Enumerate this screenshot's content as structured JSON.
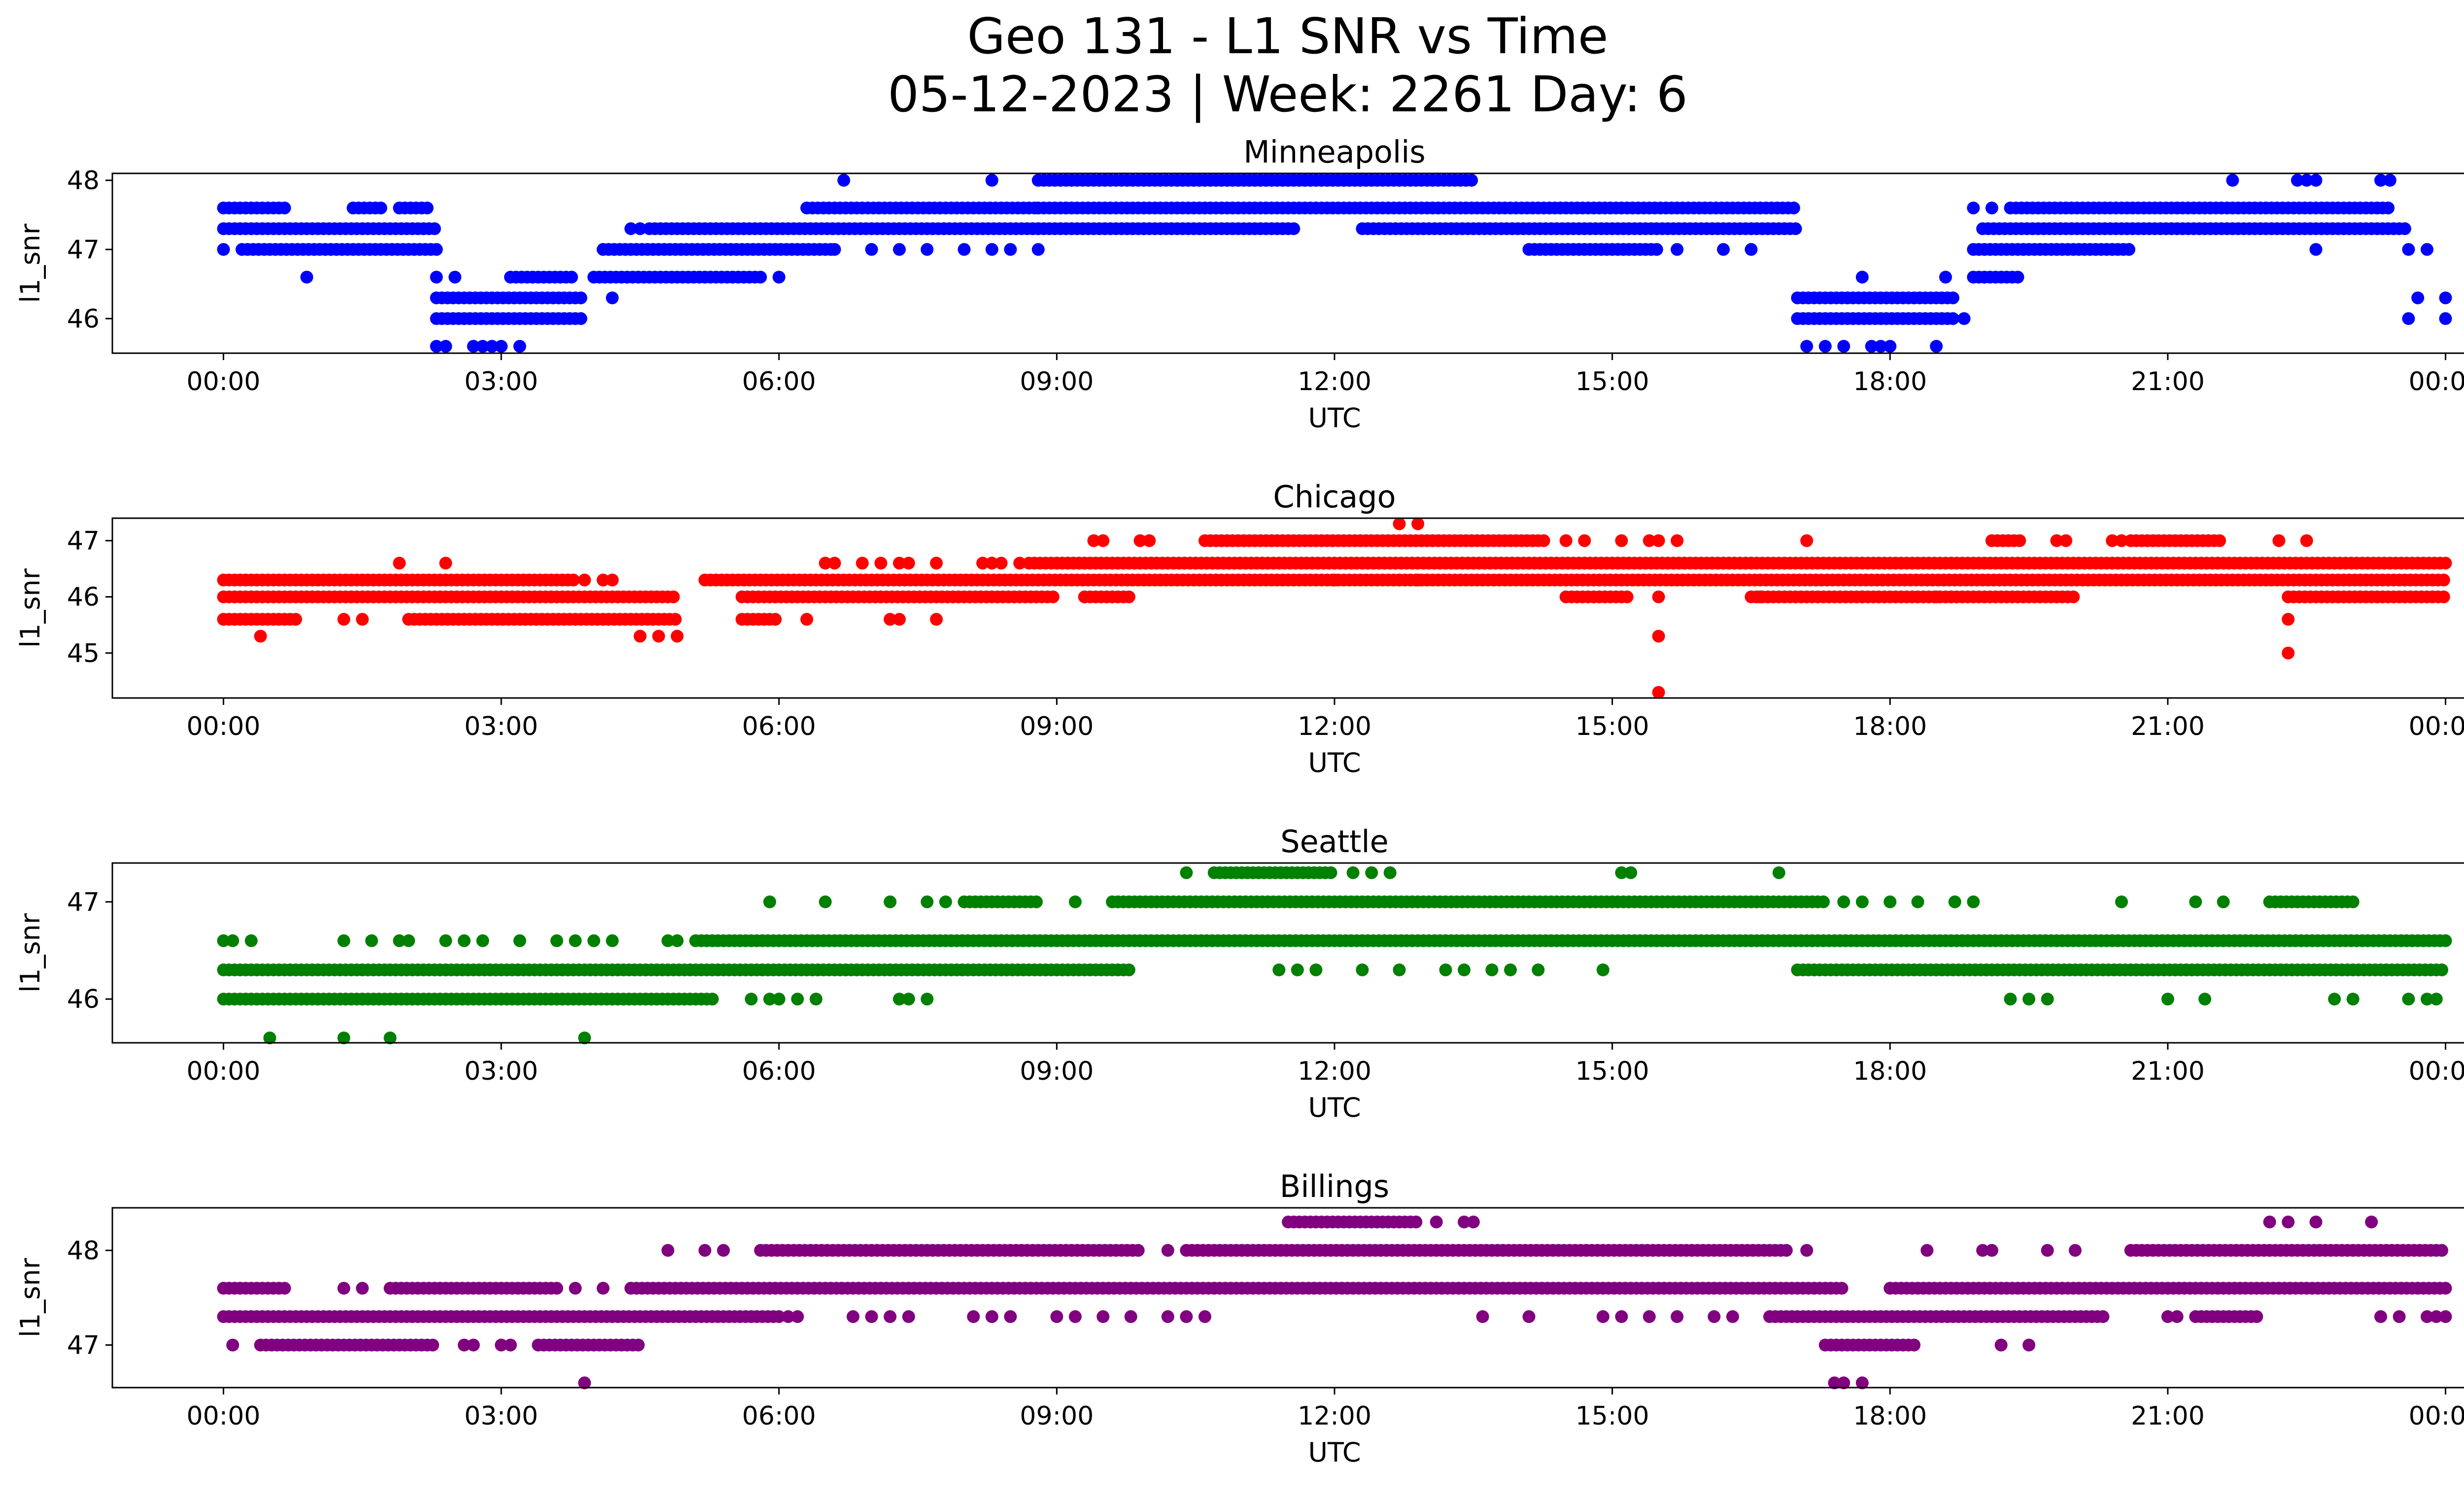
{
  "chart_data": {
    "type": "scatter",
    "title": "Geo 131 - L1 SNR vs Time",
    "subtitle": "05-12-2023 | Week: 2261 Day: 6",
    "xlabel": "UTC",
    "ylabel": "l1_snr",
    "x_ticks": [
      "00:00",
      "03:00",
      "06:00",
      "09:00",
      "12:00",
      "15:00",
      "18:00",
      "21:00",
      "00:00"
    ],
    "xlim_hours": [
      -1.2,
      25.2
    ],
    "grid": false,
    "panels": [
      {
        "title": "Minneapolis",
        "color": "#0000ff",
        "ylim": [
          45.5,
          48.1
        ],
        "yticks": [
          46,
          47,
          48
        ],
        "series": [
          {
            "y": 47.6,
            "ranges": [
              [
                0.0,
                0.7
              ],
              [
                1.4,
                1.7
              ],
              [
                1.9,
                2.2
              ],
              [
                6.3,
                8.8
              ],
              [
                8.8,
                17.0
              ],
              [
                19.3,
                23.4
              ]
            ],
            "points": [
              18.9,
              19.1
            ]
          },
          {
            "y": 47.3,
            "ranges": [
              [
                0.0,
                2.3
              ],
              [
                4.6,
                8.8
              ],
              [
                8.8,
                11.6
              ],
              [
                12.3,
                17.0
              ],
              [
                19.0,
                23.6
              ]
            ],
            "points": [
              4.4,
              4.5
            ]
          },
          {
            "y": 47.0,
            "ranges": [
              [
                0.2,
                2.3
              ],
              [
                4.1,
                6.6
              ],
              [
                14.1,
                15.5
              ],
              [
                18.9,
                20.6
              ]
            ],
            "points": [
              0.0,
              6.6,
              7.0,
              7.3,
              7.6,
              8.0,
              8.3,
              8.5,
              8.8,
              15.7,
              16.2,
              16.5,
              22.6,
              23.6,
              23.8
            ]
          },
          {
            "y": 46.6,
            "ranges": [
              [
                3.1,
                3.8
              ],
              [
                4.0,
                5.8
              ],
              [
                18.9,
                19.4
              ]
            ],
            "points": [
              0.9,
              2.3,
              2.5,
              6.0,
              17.7,
              18.6
            ]
          },
          {
            "y": 46.3,
            "ranges": [
              [
                2.3,
                3.9
              ],
              [
                17.0,
                18.7
              ]
            ],
            "points": [
              4.2,
              23.7,
              24.0
            ]
          },
          {
            "y": 46.0,
            "ranges": [
              [
                2.3,
                3.9
              ],
              [
                17.0,
                18.7
              ]
            ],
            "points": [
              18.8,
              23.6,
              24.0
            ]
          },
          {
            "y": 45.6,
            "ranges": [],
            "points": [
              2.3,
              2.4,
              2.7,
              2.8,
              2.9,
              3.0,
              3.2,
              17.1,
              17.3,
              17.5,
              17.8,
              17.9,
              18.0,
              18.5
            ]
          },
          {
            "y": 48.0,
            "ranges": [
              [
                8.8,
                13.5
              ],
              [
                10.3,
                12.4
              ]
            ],
            "points": [
              6.7,
              8.3,
              21.7,
              22.4,
              22.5,
              22.6,
              23.3,
              23.4
            ]
          }
        ]
      },
      {
        "title": "Chicago",
        "color": "#ff0000",
        "ylim": [
          44.2,
          47.4
        ],
        "yticks": [
          45,
          46,
          47
        ],
        "series": [
          {
            "y": 47.0,
            "ranges": [
              [
                10.6,
                14.3
              ],
              [
                19.1,
                19.4
              ],
              [
                20.6,
                21.6
              ]
            ],
            "points": [
              9.4,
              9.5,
              9.9,
              10.0,
              14.5,
              14.7,
              15.1,
              15.4,
              15.5,
              15.7,
              17.1,
              19.8,
              19.9,
              20.4,
              20.5,
              22.2,
              22.5
            ]
          },
          {
            "y": 46.6,
            "ranges": [
              [
                8.7,
                24.0
              ],
              [
                9.0,
                16.5
              ]
            ],
            "points": [
              1.9,
              2.4,
              6.5,
              6.6,
              6.9,
              7.1,
              7.3,
              7.4,
              7.7,
              8.2,
              8.3,
              8.4,
              8.6
            ]
          },
          {
            "y": 46.3,
            "ranges": [
              [
                0.0,
                3.8
              ],
              [
                5.2,
                24.0
              ]
            ],
            "points": [
              3.9,
              4.1,
              4.2,
              12.0,
              12.7,
              12.9,
              13.0
            ]
          },
          {
            "y": 46.0,
            "ranges": [
              [
                0.0,
                4.9
              ],
              [
                5.6,
                9.0
              ],
              [
                9.3,
                9.8
              ],
              [
                14.5,
                15.2
              ],
              [
                16.5,
                20.0
              ],
              [
                22.3,
                24.0
              ]
            ],
            "points": [
              15.5,
              16.6,
              17.7,
              18.5
            ]
          },
          {
            "y": 45.6,
            "ranges": [
              [
                0.0,
                0.8
              ],
              [
                2.0,
                4.9
              ],
              [
                5.6,
                6.0
              ]
            ],
            "points": [
              1.3,
              1.5,
              6.3,
              7.2,
              7.3,
              7.7,
              22.3
            ]
          },
          {
            "y": 45.3,
            "ranges": [],
            "points": [
              0.4,
              4.5,
              4.7,
              4.9,
              15.5
            ]
          },
          {
            "y": 45.0,
            "ranges": [],
            "points": [
              22.3
            ]
          },
          {
            "y": 44.3,
            "ranges": [],
            "points": [
              15.5
            ]
          },
          {
            "y": 47.3,
            "ranges": [],
            "points": [
              12.7,
              12.9
            ]
          }
        ]
      },
      {
        "title": "Seattle",
        "color": "#008000",
        "ylim": [
          45.55,
          47.4
        ],
        "yticks": [
          46,
          47
        ],
        "series": [
          {
            "y": 47.3,
            "ranges": [
              [
                10.7,
                12.0
              ]
            ],
            "points": [
              10.4,
              12.2,
              12.4,
              12.6,
              15.1,
              15.2,
              16.8
            ]
          },
          {
            "y": 47.0,
            "ranges": [
              [
                9.6,
                17.3
              ],
              [
                8.0,
                8.8
              ],
              [
                22.1,
                23.0
              ]
            ],
            "points": [
              5.9,
              6.5,
              7.2,
              7.6,
              7.8,
              9.2,
              17.5,
              17.7,
              18.0,
              18.3,
              18.7,
              18.9,
              20.5,
              21.3,
              21.6
            ]
          },
          {
            "y": 46.6,
            "ranges": [
              [
                5.1,
                24.0
              ]
            ],
            "points": [
              0.0,
              0.1,
              0.3,
              1.3,
              1.6,
              1.9,
              2.0,
              2.4,
              2.6,
              2.8,
              3.2,
              3.6,
              3.8,
              4.0,
              4.2,
              4.8,
              4.9
            ]
          },
          {
            "y": 46.3,
            "ranges": [
              [
                0.0,
                9.8
              ],
              [
                17.0,
                24.0
              ]
            ],
            "points": [
              11.4,
              11.6,
              11.8,
              12.3,
              12.7,
              13.2,
              13.4,
              13.7,
              13.9,
              14.2,
              14.9
            ]
          },
          {
            "y": 46.0,
            "ranges": [
              [
                0.0,
                5.3
              ]
            ],
            "points": [
              5.7,
              5.9,
              6.0,
              6.2,
              6.4,
              7.3,
              7.4,
              7.6,
              19.3,
              19.5,
              19.7,
              21.0,
              21.4,
              22.8,
              23.0,
              23.6,
              23.8,
              23.9
            ]
          },
          {
            "y": 45.6,
            "ranges": [],
            "points": [
              0.5,
              1.3,
              1.8,
              3.9
            ]
          }
        ]
      },
      {
        "title": "Billings",
        "color": "#800080",
        "ylim": [
          46.55,
          48.45
        ],
        "yticks": [
          47,
          48
        ],
        "series": [
          {
            "y": 48.3,
            "ranges": [
              [
                11.5,
                12.9
              ]
            ],
            "points": [
              13.1,
              13.4,
              13.5,
              22.1,
              22.3,
              22.6,
              23.2
            ]
          },
          {
            "y": 48.0,
            "ranges": [
              [
                5.8,
                9.9
              ],
              [
                10.4,
                16.9
              ],
              [
                20.6,
                24.0
              ]
            ],
            "points": [
              4.8,
              5.2,
              5.4,
              10.2,
              17.1,
              18.4,
              19.0,
              19.1,
              19.7,
              20.0
            ]
          },
          {
            "y": 47.6,
            "ranges": [
              [
                0.0,
                0.7
              ],
              [
                1.8,
                3.6
              ],
              [
                4.4,
                17.5
              ],
              [
                18.0,
                24.0
              ]
            ],
            "points": [
              1.3,
              1.5,
              3.8,
              4.1
            ]
          },
          {
            "y": 47.3,
            "ranges": [
              [
                0.0,
                6.0
              ],
              [
                16.7,
                20.3
              ],
              [
                21.3,
                22.0
              ]
            ],
            "points": [
              6.1,
              6.2,
              6.8,
              7.0,
              7.2,
              7.4,
              8.1,
              8.3,
              8.5,
              9.0,
              9.2,
              9.5,
              9.8,
              10.2,
              10.4,
              10.6,
              13.6,
              14.1,
              14.9,
              15.1,
              15.4,
              15.7,
              16.1,
              16.3,
              21.0,
              21.1,
              23.3,
              23.5,
              23.8,
              23.9,
              24.0
            ]
          },
          {
            "y": 47.0,
            "ranges": [
              [
                0.4,
                2.3
              ],
              [
                3.4,
                4.5
              ],
              [
                17.3,
                18.3
              ]
            ],
            "points": [
              0.1,
              2.6,
              2.7,
              3.0,
              3.1,
              19.2,
              19.5
            ]
          },
          {
            "y": 46.6,
            "ranges": [],
            "points": [
              3.9,
              17.4,
              17.5,
              17.7
            ]
          }
        ]
      }
    ]
  }
}
